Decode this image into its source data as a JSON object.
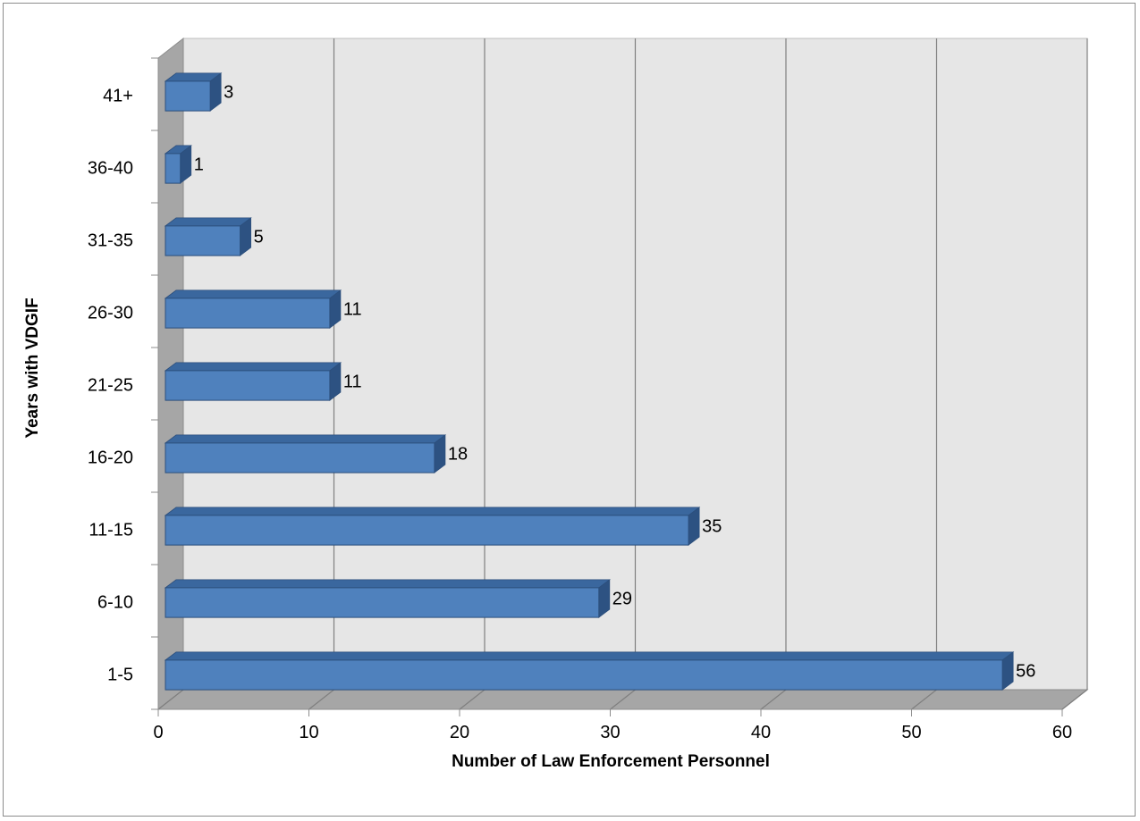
{
  "chart_data": {
    "type": "bar",
    "orientation": "horizontal",
    "three_d": true,
    "title": "",
    "xlabel": "Number of Law Enforcement Personnel",
    "ylabel": "Years with VDGIF",
    "categories": [
      "1-5",
      "6-10",
      "11-15",
      "16-20",
      "21-25",
      "26-30",
      "31-35",
      "36-40",
      "41+"
    ],
    "values": [
      56,
      29,
      35,
      18,
      11,
      11,
      5,
      1,
      3
    ],
    "xlim": [
      0,
      60
    ],
    "xticks": [
      0,
      10,
      20,
      30,
      40,
      50,
      60
    ],
    "grid": "vertical",
    "legend": "none",
    "colors": {
      "bar_front": "#4f81bd",
      "bar_top": "#3a679e",
      "bar_side": "#2d5282",
      "bar_border": "#2c4f7c",
      "back_wall": "#e6e6e6",
      "side_wall": "#a6a6a6",
      "floor": "#a6a6a6",
      "gridline": "#7f7f7f"
    }
  }
}
